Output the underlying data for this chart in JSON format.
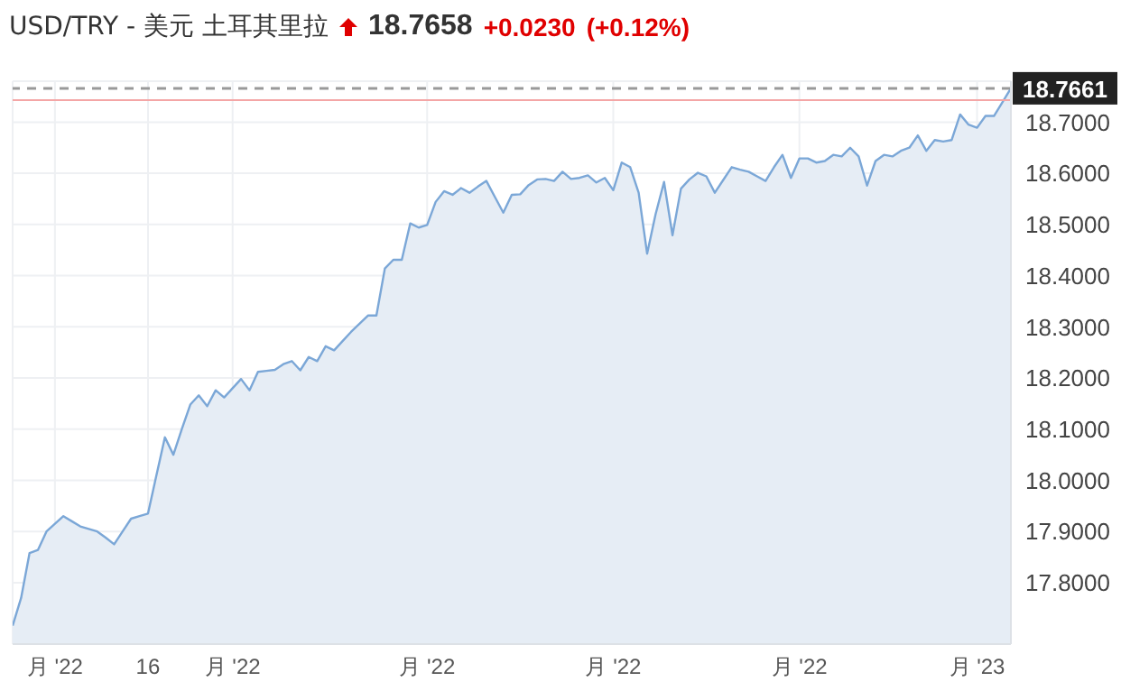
{
  "chart_data": {
    "type": "area",
    "title": "USD/TRY - 美元 土耳其里拉",
    "annotations": [
      "18.7658",
      "+0.0230",
      "(+0.12%)"
    ],
    "categories": [
      null,
      null,
      null,
      null,
      null,
      "月 '22",
      null,
      null,
      null,
      null,
      null,
      null,
      null,
      null,
      null,
      null,
      "16",
      null,
      null,
      null,
      null,
      null,
      null,
      null,
      null,
      null,
      "月 '22",
      null,
      null,
      null,
      null,
      null,
      null,
      null,
      null,
      null,
      null,
      null,
      null,
      null,
      null,
      null,
      null,
      null,
      null,
      null,
      null,
      null,
      null,
      "月 '22",
      null,
      null,
      null,
      null,
      null,
      null,
      null,
      null,
      null,
      null,
      null,
      null,
      null,
      null,
      null,
      null,
      null,
      null,
      null,
      null,
      null,
      "月 '22",
      null,
      null,
      null,
      null,
      null,
      null,
      null,
      null,
      null,
      null,
      null,
      null,
      null,
      null,
      null,
      null,
      null,
      null,
      null,
      null,
      null,
      "月 '22",
      null,
      null,
      null,
      null,
      null,
      null,
      null,
      null,
      null,
      null,
      null,
      null,
      null,
      null,
      null,
      null,
      null,
      null,
      null,
      null,
      "月 '23",
      null,
      null,
      null,
      null
    ],
    "series": [
      {
        "color": "#7ba7d7",
        "values": [
          17.716,
          17.77,
          17.858,
          17.864,
          17.9,
          17.915,
          17.93,
          17.92,
          17.91,
          17.905,
          17.9,
          17.888,
          17.875,
          17.9,
          17.925,
          17.93,
          17.935,
          18.01,
          18.084,
          18.05,
          18.1,
          18.148,
          18.166,
          18.145,
          18.176,
          18.162,
          18.18,
          18.198,
          18.176,
          18.212,
          18.214,
          18.216,
          18.227,
          18.233,
          18.215,
          18.241,
          18.233,
          18.262,
          18.254,
          18.272,
          18.29,
          18.306,
          18.322,
          18.322,
          18.414,
          18.431,
          18.431,
          18.502,
          18.494,
          18.499,
          18.544,
          18.565,
          18.558,
          18.571,
          18.562,
          18.574,
          18.585,
          18.554,
          18.523,
          18.558,
          18.559,
          18.577,
          18.588,
          18.589,
          18.585,
          18.603,
          18.589,
          18.591,
          18.596,
          18.582,
          18.591,
          18.567,
          18.621,
          18.612,
          18.562,
          18.443,
          18.52,
          18.583,
          18.479,
          18.57,
          18.588,
          18.601,
          18.594,
          18.562,
          18.587,
          18.612,
          18.607,
          18.603,
          18.594,
          18.585,
          18.612,
          18.636,
          18.591,
          18.629,
          18.629,
          18.621,
          18.624,
          18.636,
          18.633,
          18.65,
          18.633,
          18.576,
          18.624,
          18.636,
          18.633,
          18.644,
          18.65,
          18.674,
          18.644,
          18.665,
          18.662,
          18.665,
          18.715,
          18.695,
          18.689,
          18.712,
          18.712,
          18.739,
          18.766
        ]
      }
    ],
    "ylim": [
      17.68,
      18.78
    ],
    "yticks": [
      {
        "value": 17.8,
        "label": "17.8000"
      },
      {
        "value": 17.9,
        "label": "17.9000"
      },
      {
        "value": 18,
        "label": "18.0000"
      },
      {
        "value": 18.1,
        "label": "18.1000"
      },
      {
        "value": 18.2,
        "label": "18.2000"
      },
      {
        "value": 18.3,
        "label": "18.3000"
      },
      {
        "value": 18.4,
        "label": "18.4000"
      },
      {
        "value": 18.5,
        "label": "18.5000"
      },
      {
        "value": 18.6,
        "label": "18.6000"
      },
      {
        "value": 18.7,
        "label": "18.7000"
      }
    ],
    "ref_lines": [
      {
        "axis": "y",
        "value": 18.7661,
        "label": "18.7661",
        "color": "#999999",
        "line_style": "dashed"
      },
      {
        "axis": "y",
        "value": 18.7428,
        "color": "#f4a6a6",
        "line_style": "solid"
      }
    ],
    "grid": true
  }
}
